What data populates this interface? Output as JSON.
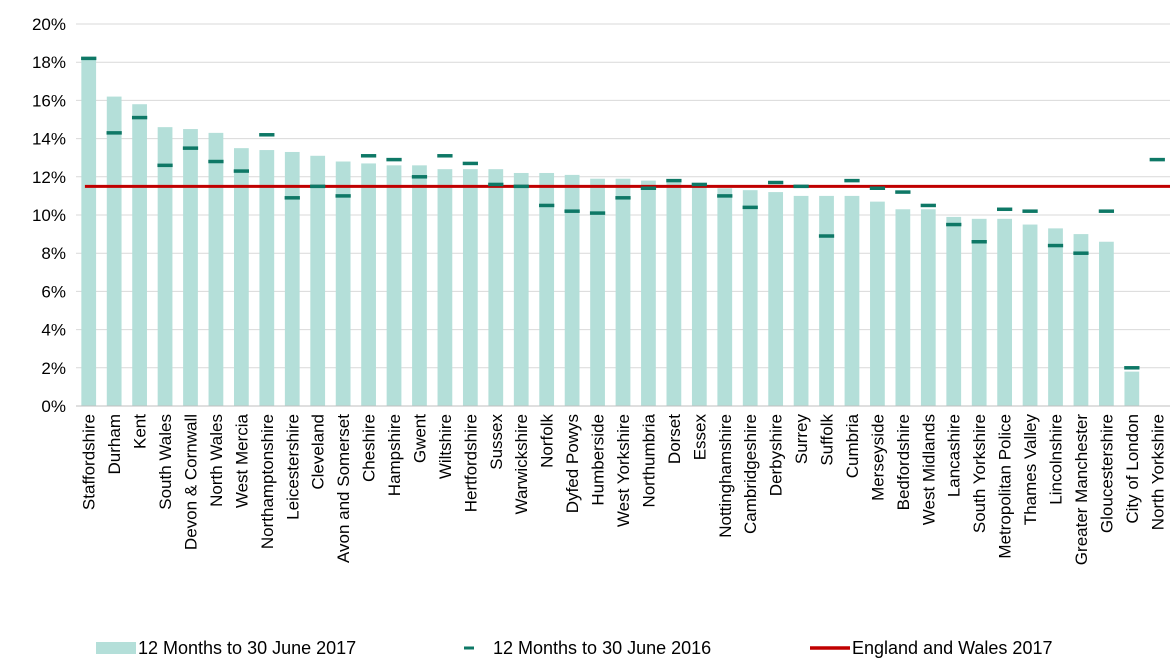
{
  "chart_data": {
    "type": "bar",
    "title": "",
    "xlabel": "",
    "ylabel": "",
    "ylim": [
      0,
      20
    ],
    "yticks": [
      "0%",
      "2%",
      "4%",
      "6%",
      "8%",
      "10%",
      "12%",
      "14%",
      "16%",
      "18%",
      "20%"
    ],
    "grid": true,
    "legend_position": "bottom",
    "categories": [
      "Staffordshire",
      "Durham",
      "Kent",
      "South Wales",
      "Devon & Cornwall",
      "North Wales",
      "West Mercia",
      "Northamptonshire",
      "Leicestershire",
      "Cleveland",
      "Avon and Somerset",
      "Cheshire",
      "Hampshire",
      "Gwent",
      "Wiltshire",
      "Hertfordshire",
      "Sussex",
      "Warwickshire",
      "Norfolk",
      "Dyfed Powys",
      "Humberside",
      "West Yorkshire",
      "Northumbria",
      "Dorset",
      "Essex",
      "Nottinghamshire",
      "Cambridgeshire",
      "Derbyshire",
      "Surrey",
      "Suffolk",
      "Cumbria",
      "Merseyside",
      "Bedfordshire",
      "West Midlands",
      "Lancashire",
      "South Yorkshire",
      "Metropolitan Police",
      "Thames Valley",
      "Lincolnshire",
      "Greater Manchester",
      "Gloucestershire",
      "City of London",
      "North Yorkshire"
    ],
    "series": [
      {
        "name": "12 Months to 30 June 2017",
        "kind": "bar",
        "color": "#b4dfd9",
        "values": [
          18.2,
          16.2,
          15.8,
          14.6,
          14.5,
          14.3,
          13.5,
          13.4,
          13.3,
          13.1,
          12.8,
          12.7,
          12.6,
          12.6,
          12.4,
          12.4,
          12.4,
          12.2,
          12.2,
          12.1,
          11.9,
          11.9,
          11.8,
          11.7,
          11.5,
          11.4,
          11.3,
          11.2,
          11.0,
          11.0,
          11.0,
          10.7,
          10.3,
          10.3,
          9.9,
          9.8,
          9.8,
          9.5,
          9.3,
          9.0,
          8.6,
          1.8,
          null
        ]
      },
      {
        "name": "12 Months to 30 June 2016",
        "kind": "marker",
        "color": "#0e7866",
        "values": [
          18.2,
          14.3,
          15.1,
          12.6,
          13.5,
          12.8,
          12.3,
          14.2,
          10.9,
          11.5,
          11.0,
          13.1,
          12.9,
          12.0,
          13.1,
          12.7,
          11.6,
          11.5,
          10.5,
          10.2,
          10.1,
          10.9,
          11.4,
          11.8,
          11.6,
          11.0,
          10.4,
          11.7,
          11.5,
          8.9,
          11.8,
          11.4,
          11.2,
          10.5,
          9.5,
          8.6,
          10.3,
          10.2,
          8.4,
          8.0,
          10.2,
          2.0,
          12.9
        ]
      },
      {
        "name": "England and Wales 2017",
        "kind": "line",
        "color": "#c00000",
        "value": 11.5
      }
    ]
  }
}
